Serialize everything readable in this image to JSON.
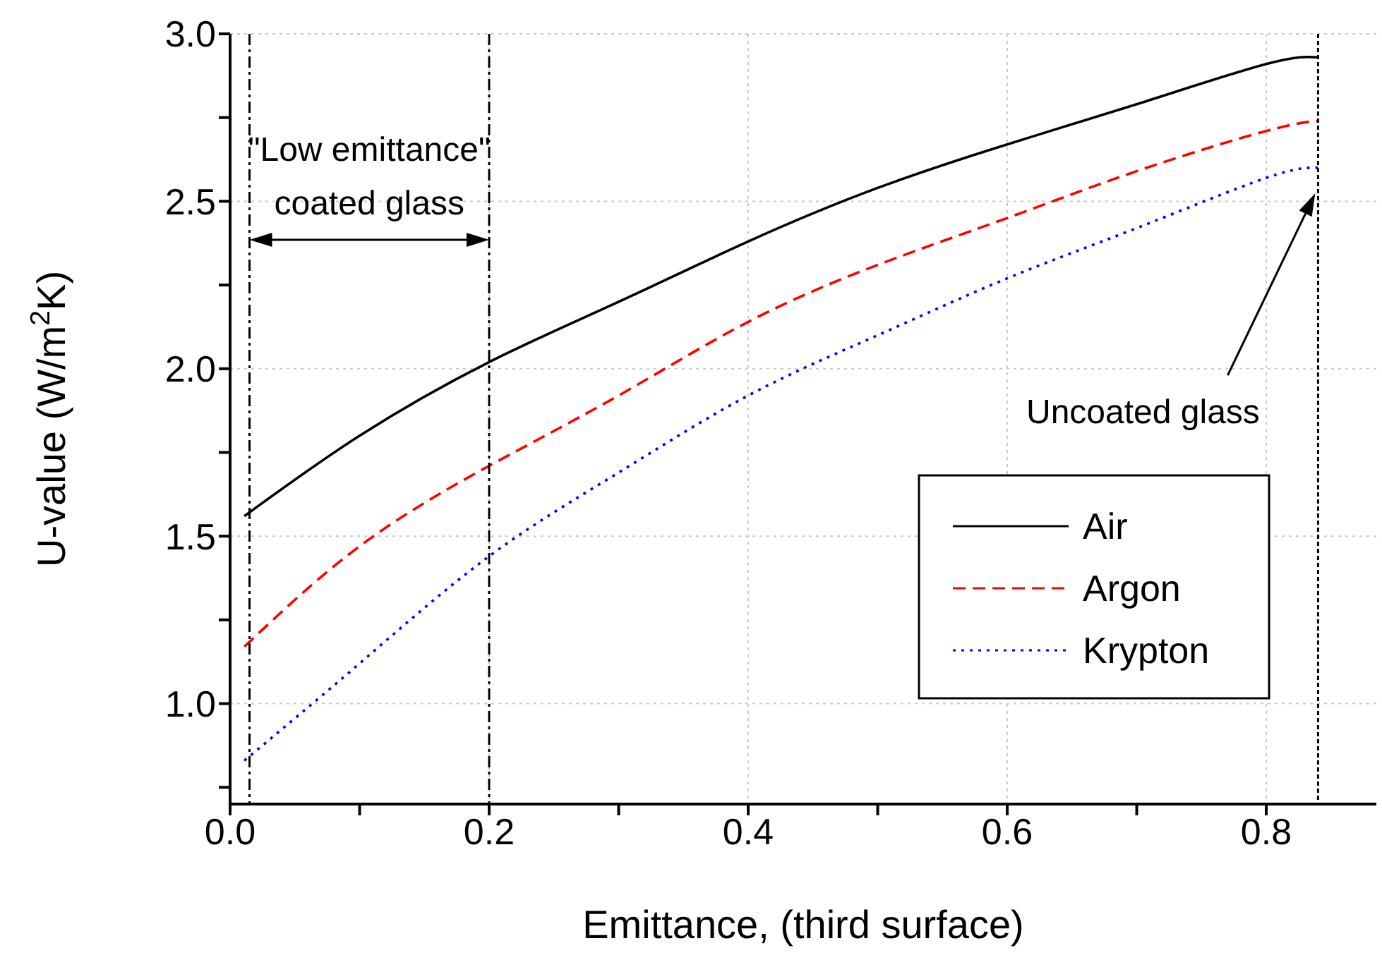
{
  "chart_data": {
    "type": "line",
    "xlabel": "Emittance, (third surface)",
    "ylabel": "U-value (W/m$^{2}$K)",
    "x": [
      0.011,
      0.1,
      0.2,
      0.3,
      0.4,
      0.5,
      0.6,
      0.7,
      0.8,
      0.84
    ],
    "series": [
      {
        "name": "Air",
        "color": "#000000",
        "line_style": "solid",
        "values": [
          1.56,
          1.8,
          2.02,
          2.2,
          2.38,
          2.54,
          2.67,
          2.79,
          2.91,
          2.93
        ]
      },
      {
        "name": "Argon",
        "color": "#ff0000",
        "line_style": "dashed",
        "values": [
          1.17,
          1.47,
          1.71,
          1.92,
          2.14,
          2.31,
          2.45,
          2.59,
          2.71,
          2.74
        ]
      },
      {
        "name": "Krypton",
        "color": "#0000ff",
        "line_style": "dotted",
        "values": [
          0.83,
          1.12,
          1.44,
          1.69,
          1.92,
          2.1,
          2.27,
          2.42,
          2.57,
          2.6
        ]
      }
    ],
    "xlim": [
      0,
      0.885
    ],
    "xticks": [
      {
        "value": 0,
        "label": "0.0"
      },
      {
        "value": 0.1,
        "label": null
      },
      {
        "value": 0.2,
        "label": "0.2"
      },
      {
        "value": 0.3,
        "label": null
      },
      {
        "value": 0.4,
        "label": "0.4"
      },
      {
        "value": 0.5,
        "label": null
      },
      {
        "value": 0.6,
        "label": "0.6"
      },
      {
        "value": 0.7,
        "label": null
      },
      {
        "value": 0.8,
        "label": "0.8"
      }
    ],
    "ylim": [
      0.7,
      3.0
    ],
    "yticks": [
      {
        "value": 0.75,
        "label": null
      },
      {
        "value": 1.0,
        "label": "1.0"
      },
      {
        "value": 1.25,
        "label": null
      },
      {
        "value": 1.5,
        "label": "1.5"
      },
      {
        "value": 1.75,
        "label": null
      },
      {
        "value": 2.0,
        "label": "2.0"
      },
      {
        "value": 2.25,
        "label": null
      },
      {
        "value": 2.5,
        "label": "2.5"
      },
      {
        "value": 2.75,
        "label": null
      },
      {
        "value": 3.0,
        "label": "3.0"
      }
    ],
    "grid": true,
    "legend": "bottom right",
    "marker": "none",
    "ref_lines": [
      {
        "axis": "x",
        "value": 0.015,
        "color": "#000000",
        "line_style": "dashed"
      },
      {
        "axis": "x",
        "value": 0.2,
        "color": "#000000",
        "line_style": "dashed"
      },
      {
        "axis": "x",
        "value": 0.84,
        "color": "#000000",
        "line_style": "dotted"
      }
    ],
    "annotations": [
      "\"Low emittance\"\ncoated glass",
      "Uncoated glass"
    ]
  }
}
